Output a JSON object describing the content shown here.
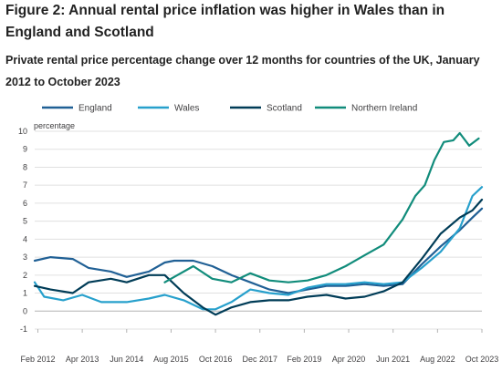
{
  "title": "Figure 2: Annual rental price inflation was higher in Wales than in England and Scotland",
  "subtitle": "Private rental price percentage change over 12 months for countries of the UK, January 2012 to October 2023",
  "chart_data": {
    "type": "line",
    "ylabel": "percentage",
    "ylim": [
      -1,
      10
    ],
    "yticks": [
      "-1",
      "0",
      "1",
      "2",
      "3",
      "4",
      "5",
      "6",
      "7",
      "8",
      "9",
      "10"
    ],
    "xlim": [
      "2012-01",
      "2023-10"
    ],
    "xtick_labels": [
      "Feb 2012",
      "Apr 2013",
      "Jun 2014",
      "Aug 2015",
      "Oct 2016",
      "Dec 2017",
      "Feb 2019",
      "Apr 2020",
      "Jun 2021",
      "Aug 2022",
      "Oct 2023"
    ],
    "xtick_dates": [
      "2012-02",
      "2013-04",
      "2014-06",
      "2015-08",
      "2016-10",
      "2017-12",
      "2019-02",
      "2020-04",
      "2021-06",
      "2022-08",
      "2023-10"
    ],
    "grid": true,
    "legend_position": "top",
    "series": [
      {
        "name": "England",
        "color": "#206095",
        "points": [
          [
            "2012-01",
            2.8
          ],
          [
            "2012-06",
            3.0
          ],
          [
            "2013-01",
            2.9
          ],
          [
            "2013-06",
            2.4
          ],
          [
            "2014-01",
            2.2
          ],
          [
            "2014-06",
            1.9
          ],
          [
            "2015-01",
            2.2
          ],
          [
            "2015-06",
            2.7
          ],
          [
            "2015-09",
            2.8
          ],
          [
            "2016-03",
            2.8
          ],
          [
            "2016-09",
            2.5
          ],
          [
            "2017-03",
            2.0
          ],
          [
            "2017-09",
            1.6
          ],
          [
            "2018-03",
            1.2
          ],
          [
            "2018-09",
            1.0
          ],
          [
            "2019-03",
            1.2
          ],
          [
            "2019-09",
            1.4
          ],
          [
            "2020-03",
            1.4
          ],
          [
            "2020-09",
            1.5
          ],
          [
            "2021-03",
            1.4
          ],
          [
            "2021-09",
            1.5
          ],
          [
            "2022-03",
            2.6
          ],
          [
            "2022-09",
            3.6
          ],
          [
            "2023-03",
            4.5
          ],
          [
            "2023-07",
            5.2
          ],
          [
            "2023-10",
            5.7
          ]
        ]
      },
      {
        "name": "Wales",
        "color": "#27a0cc",
        "points": [
          [
            "2012-01",
            1.6
          ],
          [
            "2012-04",
            0.8
          ],
          [
            "2012-10",
            0.6
          ],
          [
            "2013-04",
            0.9
          ],
          [
            "2013-10",
            0.5
          ],
          [
            "2014-06",
            0.5
          ],
          [
            "2015-01",
            0.7
          ],
          [
            "2015-06",
            0.9
          ],
          [
            "2015-12",
            0.6
          ],
          [
            "2016-06",
            0.1
          ],
          [
            "2016-10",
            0.1
          ],
          [
            "2017-03",
            0.5
          ],
          [
            "2017-09",
            1.2
          ],
          [
            "2018-03",
            1.0
          ],
          [
            "2018-09",
            0.9
          ],
          [
            "2019-03",
            1.3
          ],
          [
            "2019-09",
            1.5
          ],
          [
            "2020-03",
            1.5
          ],
          [
            "2020-09",
            1.6
          ],
          [
            "2021-03",
            1.5
          ],
          [
            "2021-09",
            1.6
          ],
          [
            "2022-03",
            2.4
          ],
          [
            "2022-09",
            3.3
          ],
          [
            "2023-03",
            4.6
          ],
          [
            "2023-07",
            6.4
          ],
          [
            "2023-10",
            6.9
          ]
        ]
      },
      {
        "name": "Scotland",
        "color": "#003c57",
        "points": [
          [
            "2012-01",
            1.4
          ],
          [
            "2012-06",
            1.2
          ],
          [
            "2013-01",
            1.0
          ],
          [
            "2013-06",
            1.6
          ],
          [
            "2014-01",
            1.8
          ],
          [
            "2014-06",
            1.6
          ],
          [
            "2015-01",
            2.0
          ],
          [
            "2015-06",
            2.0
          ],
          [
            "2015-12",
            1.0
          ],
          [
            "2016-06",
            0.2
          ],
          [
            "2016-10",
            -0.2
          ],
          [
            "2017-03",
            0.2
          ],
          [
            "2017-09",
            0.5
          ],
          [
            "2018-03",
            0.6
          ],
          [
            "2018-09",
            0.6
          ],
          [
            "2019-03",
            0.8
          ],
          [
            "2019-09",
            0.9
          ],
          [
            "2020-03",
            0.7
          ],
          [
            "2020-09",
            0.8
          ],
          [
            "2021-03",
            1.1
          ],
          [
            "2021-09",
            1.6
          ],
          [
            "2022-03",
            2.9
          ],
          [
            "2022-09",
            4.3
          ],
          [
            "2023-03",
            5.2
          ],
          [
            "2023-07",
            5.6
          ],
          [
            "2023-10",
            6.2
          ]
        ]
      },
      {
        "name": "Northern Ireland",
        "color": "#118c7b",
        "points": [
          [
            "2015-06",
            1.6
          ],
          [
            "2015-10",
            2.0
          ],
          [
            "2016-03",
            2.5
          ],
          [
            "2016-09",
            1.8
          ],
          [
            "2017-03",
            1.6
          ],
          [
            "2017-09",
            2.1
          ],
          [
            "2018-03",
            1.7
          ],
          [
            "2018-09",
            1.6
          ],
          [
            "2019-03",
            1.7
          ],
          [
            "2019-09",
            2.0
          ],
          [
            "2020-03",
            2.5
          ],
          [
            "2020-09",
            3.1
          ],
          [
            "2021-03",
            3.7
          ],
          [
            "2021-09",
            5.1
          ],
          [
            "2022-01",
            6.4
          ],
          [
            "2022-04",
            7.0
          ],
          [
            "2022-07",
            8.4
          ],
          [
            "2022-10",
            9.4
          ],
          [
            "2023-01",
            9.5
          ],
          [
            "2023-03",
            9.9
          ],
          [
            "2023-06",
            9.2
          ],
          [
            "2023-09",
            9.6
          ]
        ]
      }
    ]
  }
}
